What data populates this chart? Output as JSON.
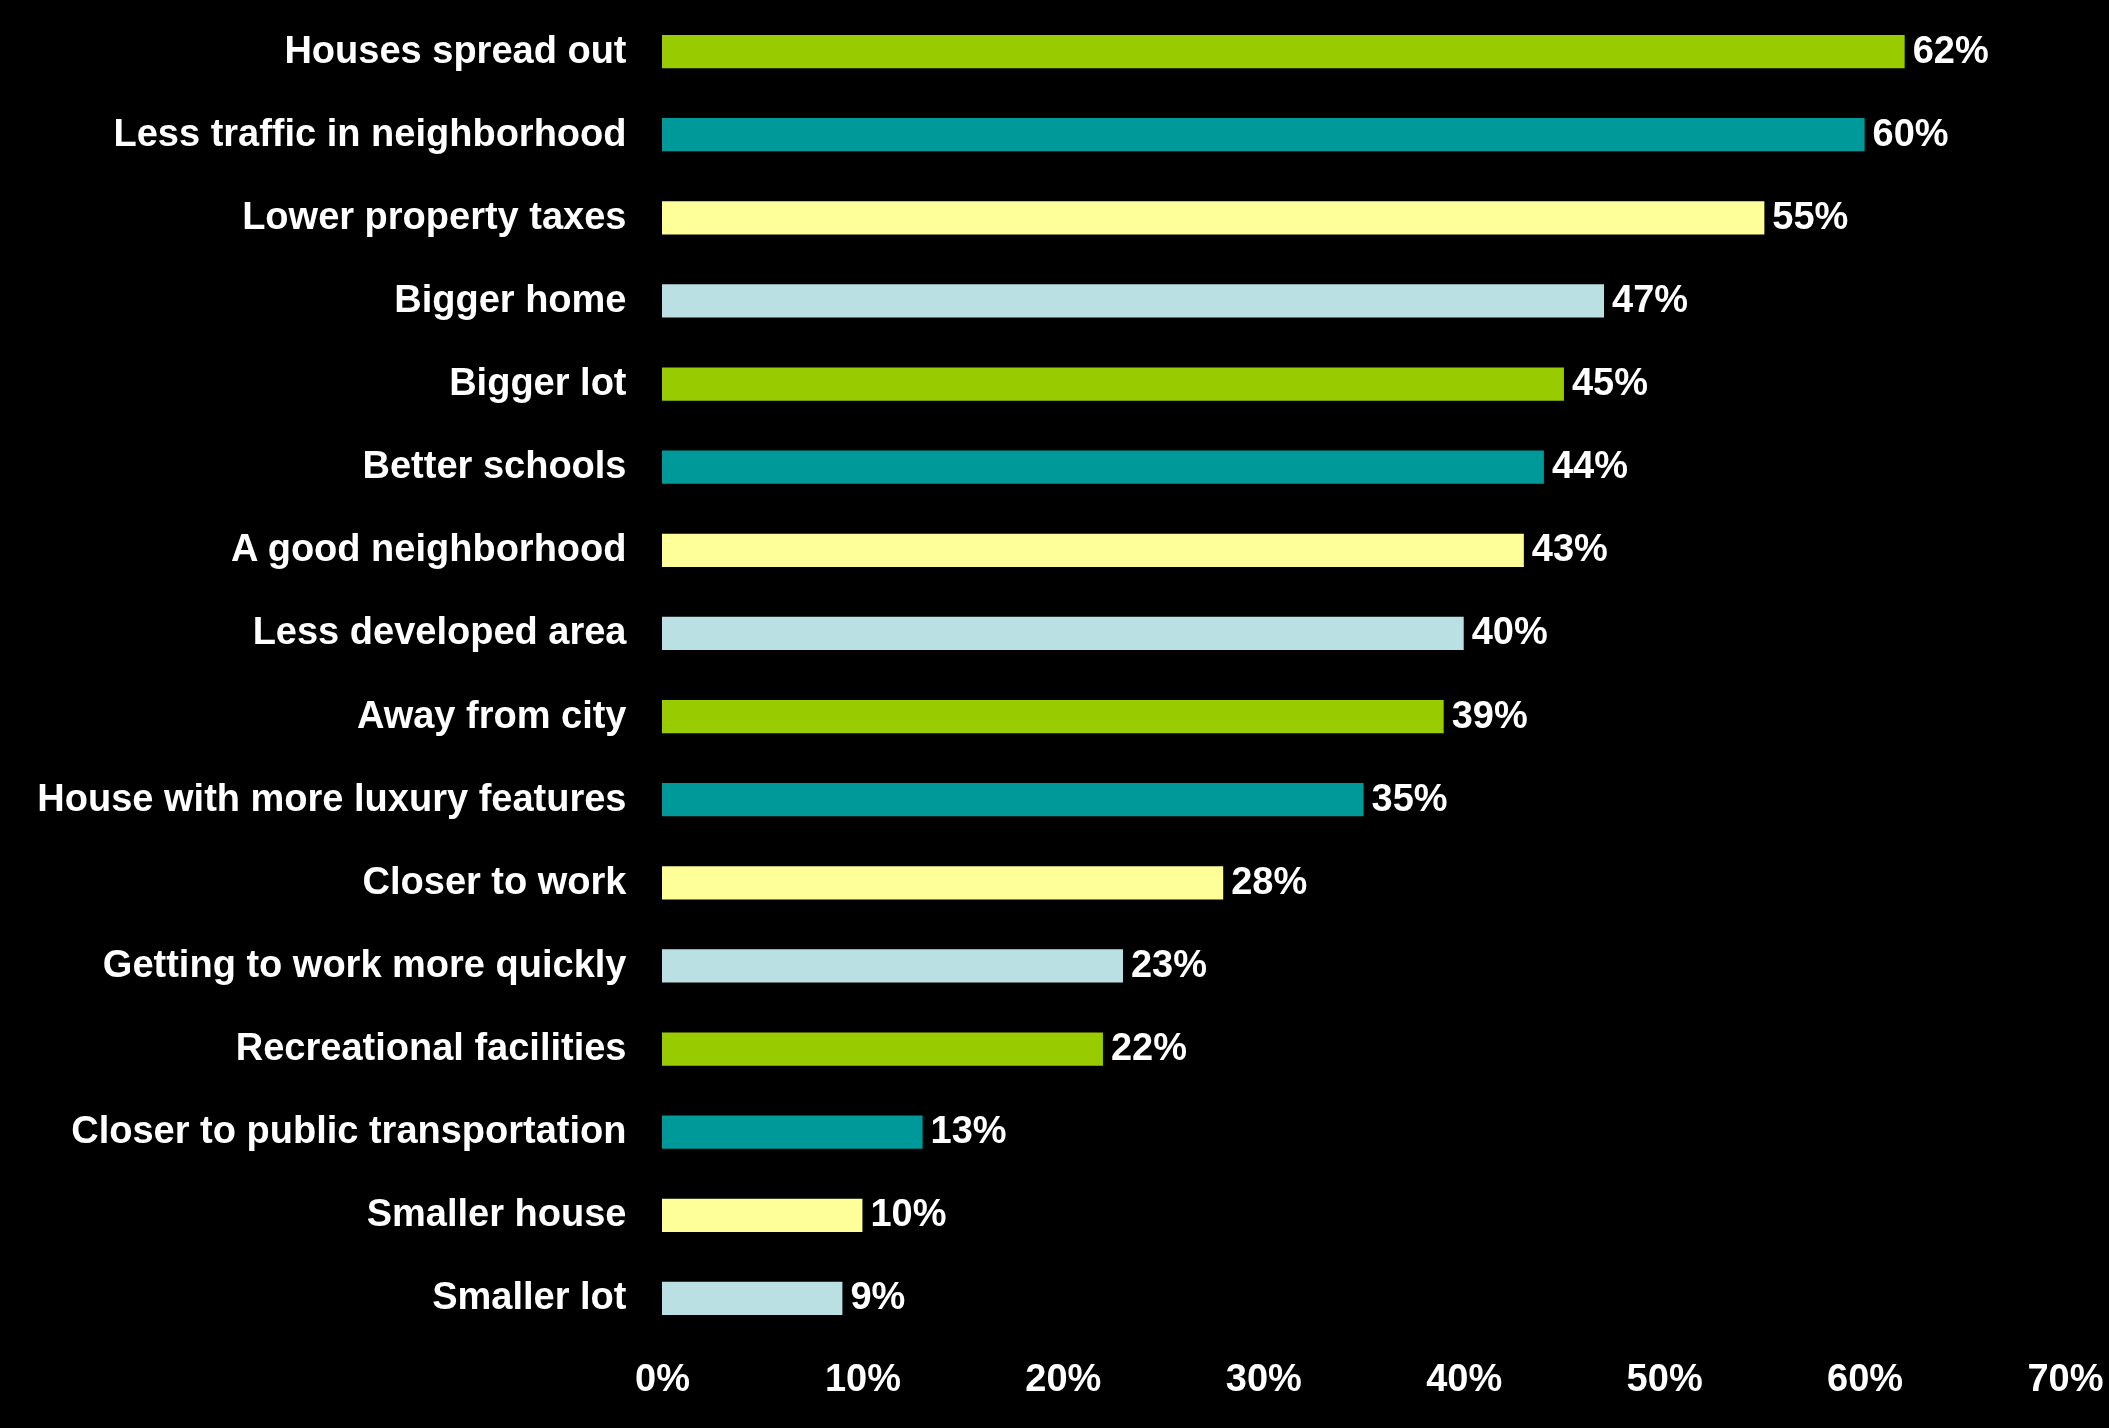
{
  "chart_data": {
    "type": "bar",
    "orientation": "horizontal",
    "categories": [
      "Houses spread out",
      "Less traffic in neighborhood",
      "Lower property taxes",
      "Bigger home",
      "Bigger lot",
      "Better schools",
      "A good neighborhood",
      "Less developed area",
      "Away from city",
      "House with more luxury features",
      "Closer to work",
      "Getting to work more quickly",
      "Recreational facilities",
      "Closer to public transportation",
      "Smaller house",
      "Smaller lot"
    ],
    "values": [
      62,
      60,
      55,
      47,
      45,
      44,
      43,
      40,
      39,
      35,
      28,
      23,
      22,
      13,
      10,
      9
    ],
    "value_labels": [
      "62%",
      "60%",
      "55%",
      "47%",
      "45%",
      "44%",
      "43%",
      "40%",
      "39%",
      "35%",
      "28%",
      "23%",
      "22%",
      "13%",
      "10%",
      "9%"
    ],
    "colors": [
      "#99cc00",
      "#009999",
      "#ffff99",
      "#bbe0e3",
      "#99cc00",
      "#009999",
      "#ffff99",
      "#bbe0e3",
      "#99cc00",
      "#009999",
      "#ffff99",
      "#bbe0e3",
      "#99cc00",
      "#009999",
      "#ffff99",
      "#bbe0e3"
    ],
    "xlim": [
      0,
      70
    ],
    "xticks": [
      {
        "value": 0,
        "label": "0%"
      },
      {
        "value": 10,
        "label": "10%"
      },
      {
        "value": 20,
        "label": "20%"
      },
      {
        "value": 30,
        "label": "30%"
      },
      {
        "value": 40,
        "label": "40%"
      },
      {
        "value": 50,
        "label": "50%"
      },
      {
        "value": 60,
        "label": "60%"
      },
      {
        "value": 70,
        "label": "70%"
      }
    ],
    "grid": false
  }
}
